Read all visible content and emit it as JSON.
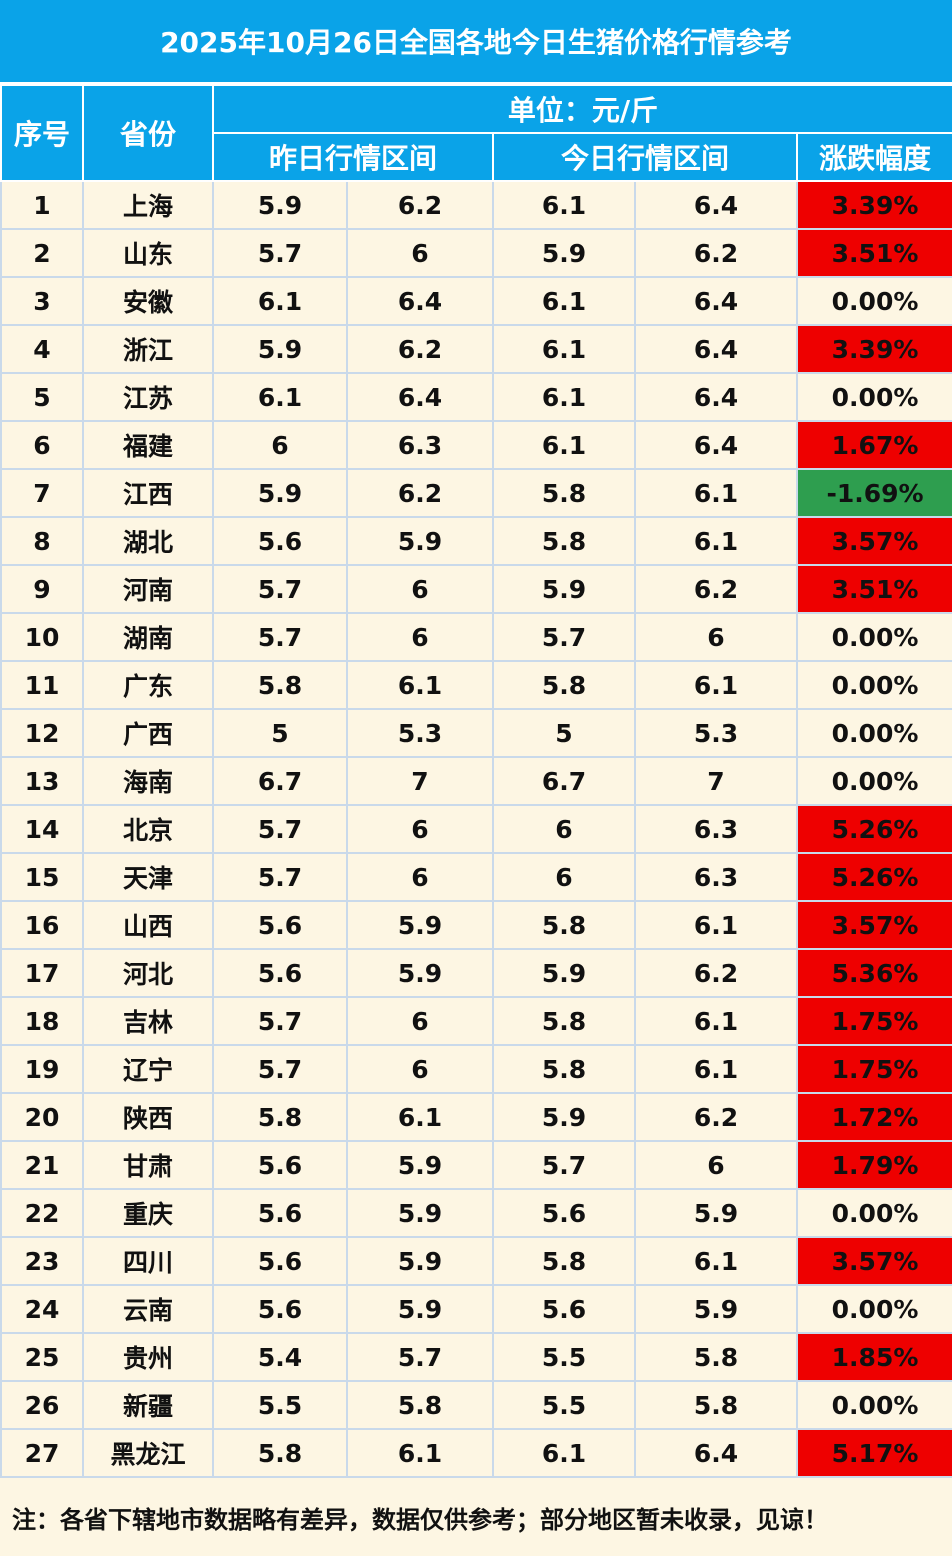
{
  "title": "2025年10月26日全国各地今日生猪价格行情参考",
  "header": {
    "seq": "序号",
    "province": "省份",
    "unit": "单位：元/斤",
    "yesterday": "昨日行情区间",
    "today": "今日行情区间",
    "change": "涨跌幅度"
  },
  "colors": {
    "header_bg": "#0aa3e8",
    "up": "#ee0000",
    "down": "#2e9e4f",
    "body_bg": "#fdf6e3"
  },
  "rows": [
    {
      "seq": "1",
      "province": "上海",
      "y_low": "5.9",
      "y_high": "6.2",
      "t_low": "6.1",
      "t_high": "6.4",
      "change": "3.39%",
      "dir": "up"
    },
    {
      "seq": "2",
      "province": "山东",
      "y_low": "5.7",
      "y_high": "6",
      "t_low": "5.9",
      "t_high": "6.2",
      "change": "3.51%",
      "dir": "up"
    },
    {
      "seq": "3",
      "province": "安徽",
      "y_low": "6.1",
      "y_high": "6.4",
      "t_low": "6.1",
      "t_high": "6.4",
      "change": "0.00%",
      "dir": "flat"
    },
    {
      "seq": "4",
      "province": "浙江",
      "y_low": "5.9",
      "y_high": "6.2",
      "t_low": "6.1",
      "t_high": "6.4",
      "change": "3.39%",
      "dir": "up"
    },
    {
      "seq": "5",
      "province": "江苏",
      "y_low": "6.1",
      "y_high": "6.4",
      "t_low": "6.1",
      "t_high": "6.4",
      "change": "0.00%",
      "dir": "flat"
    },
    {
      "seq": "6",
      "province": "福建",
      "y_low": "6",
      "y_high": "6.3",
      "t_low": "6.1",
      "t_high": "6.4",
      "change": "1.67%",
      "dir": "up"
    },
    {
      "seq": "7",
      "province": "江西",
      "y_low": "5.9",
      "y_high": "6.2",
      "t_low": "5.8",
      "t_high": "6.1",
      "change": "-1.69%",
      "dir": "down"
    },
    {
      "seq": "8",
      "province": "湖北",
      "y_low": "5.6",
      "y_high": "5.9",
      "t_low": "5.8",
      "t_high": "6.1",
      "change": "3.57%",
      "dir": "up"
    },
    {
      "seq": "9",
      "province": "河南",
      "y_low": "5.7",
      "y_high": "6",
      "t_low": "5.9",
      "t_high": "6.2",
      "change": "3.51%",
      "dir": "up"
    },
    {
      "seq": "10",
      "province": "湖南",
      "y_low": "5.7",
      "y_high": "6",
      "t_low": "5.7",
      "t_high": "6",
      "change": "0.00%",
      "dir": "flat"
    },
    {
      "seq": "11",
      "province": "广东",
      "y_low": "5.8",
      "y_high": "6.1",
      "t_low": "5.8",
      "t_high": "6.1",
      "change": "0.00%",
      "dir": "flat"
    },
    {
      "seq": "12",
      "province": "广西",
      "y_low": "5",
      "y_high": "5.3",
      "t_low": "5",
      "t_high": "5.3",
      "change": "0.00%",
      "dir": "flat"
    },
    {
      "seq": "13",
      "province": "海南",
      "y_low": "6.7",
      "y_high": "7",
      "t_low": "6.7",
      "t_high": "7",
      "change": "0.00%",
      "dir": "flat"
    },
    {
      "seq": "14",
      "province": "北京",
      "y_low": "5.7",
      "y_high": "6",
      "t_low": "6",
      "t_high": "6.3",
      "change": "5.26%",
      "dir": "up"
    },
    {
      "seq": "15",
      "province": "天津",
      "y_low": "5.7",
      "y_high": "6",
      "t_low": "6",
      "t_high": "6.3",
      "change": "5.26%",
      "dir": "up"
    },
    {
      "seq": "16",
      "province": "山西",
      "y_low": "5.6",
      "y_high": "5.9",
      "t_low": "5.8",
      "t_high": "6.1",
      "change": "3.57%",
      "dir": "up"
    },
    {
      "seq": "17",
      "province": "河北",
      "y_low": "5.6",
      "y_high": "5.9",
      "t_low": "5.9",
      "t_high": "6.2",
      "change": "5.36%",
      "dir": "up"
    },
    {
      "seq": "18",
      "province": "吉林",
      "y_low": "5.7",
      "y_high": "6",
      "t_low": "5.8",
      "t_high": "6.1",
      "change": "1.75%",
      "dir": "up"
    },
    {
      "seq": "19",
      "province": "辽宁",
      "y_low": "5.7",
      "y_high": "6",
      "t_low": "5.8",
      "t_high": "6.1",
      "change": "1.75%",
      "dir": "up"
    },
    {
      "seq": "20",
      "province": "陕西",
      "y_low": "5.8",
      "y_high": "6.1",
      "t_low": "5.9",
      "t_high": "6.2",
      "change": "1.72%",
      "dir": "up"
    },
    {
      "seq": "21",
      "province": "甘肃",
      "y_low": "5.6",
      "y_high": "5.9",
      "t_low": "5.7",
      "t_high": "6",
      "change": "1.79%",
      "dir": "up"
    },
    {
      "seq": "22",
      "province": "重庆",
      "y_low": "5.6",
      "y_high": "5.9",
      "t_low": "5.6",
      "t_high": "5.9",
      "change": "0.00%",
      "dir": "flat"
    },
    {
      "seq": "23",
      "province": "四川",
      "y_low": "5.6",
      "y_high": "5.9",
      "t_low": "5.8",
      "t_high": "6.1",
      "change": "3.57%",
      "dir": "up"
    },
    {
      "seq": "24",
      "province": "云南",
      "y_low": "5.6",
      "y_high": "5.9",
      "t_low": "5.6",
      "t_high": "5.9",
      "change": "0.00%",
      "dir": "flat"
    },
    {
      "seq": "25",
      "province": "贵州",
      "y_low": "5.4",
      "y_high": "5.7",
      "t_low": "5.5",
      "t_high": "5.8",
      "change": "1.85%",
      "dir": "up"
    },
    {
      "seq": "26",
      "province": "新疆",
      "y_low": "5.5",
      "y_high": "5.8",
      "t_low": "5.5",
      "t_high": "5.8",
      "change": "0.00%",
      "dir": "flat"
    },
    {
      "seq": "27",
      "province": "黑龙江",
      "y_low": "5.8",
      "y_high": "6.1",
      "t_low": "6.1",
      "t_high": "6.4",
      "change": "5.17%",
      "dir": "up"
    }
  ],
  "note": "注：各省下辖地市数据略有差异，数据仅供参考；部分地区暂未收录，见谅！"
}
